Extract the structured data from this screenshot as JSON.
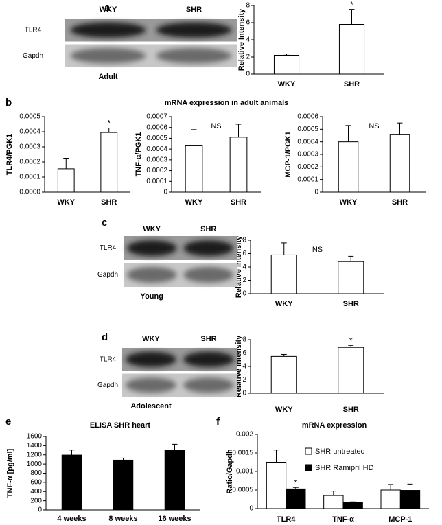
{
  "chart_data": [
    {
      "type": "bar",
      "panel": "a",
      "blot": {
        "lanes": [
          "WKY",
          "SHR"
        ],
        "rows": [
          "TLR4",
          "Gapdh"
        ],
        "caption": "Adult"
      },
      "ylabel": "Relative Intensity",
      "categories": [
        "WKY",
        "SHR"
      ],
      "series": [
        {
          "color": "#ffffff",
          "values": [
            2.2,
            5.8
          ],
          "errors": [
            0.15,
            1.75
          ],
          "annotations": [
            null,
            "*"
          ]
        }
      ],
      "ylim": [
        0,
        8
      ],
      "yticks": [
        0,
        2,
        4,
        6,
        8
      ]
    },
    {
      "type": "bar",
      "panel": "b",
      "ylabel": "TLR4/PGK1",
      "categories": [
        "WKY",
        "SHR"
      ],
      "series": [
        {
          "color": "#ffffff",
          "values": [
            0.000155,
            0.000395
          ],
          "errors": [
            7e-05,
            3e-05
          ],
          "annotations": [
            null,
            "*"
          ]
        }
      ],
      "ylim": [
        0,
        0.0005
      ],
      "yticks": [
        {
          "value": 0,
          "label": "0.0000"
        },
        0.0001,
        0.0002,
        0.0003,
        0.0004,
        0.0005
      ]
    },
    {
      "type": "bar",
      "title": "mRNA expression in adult animals",
      "ylabel": "TNF-α/PGK1",
      "annotation": "NS",
      "categories": [
        "WKY",
        "SHR"
      ],
      "series": [
        {
          "color": "#ffffff",
          "values": [
            0.00043,
            0.00051
          ],
          "errors": [
            0.00015,
            0.00012
          ]
        }
      ],
      "ylim": [
        0,
        0.0007
      ],
      "yticks": [
        0,
        0.0001,
        0.0002,
        0.0003,
        0.0004,
        0.0005,
        0.0006,
        0.0007
      ]
    },
    {
      "type": "bar",
      "ylabel": "MCP-1/PGK1",
      "annotation": "NS",
      "categories": [
        "WKY",
        "SHR"
      ],
      "series": [
        {
          "color": "#ffffff",
          "values": [
            0.0004,
            0.00046
          ],
          "errors": [
            0.00013,
            9e-05
          ]
        }
      ],
      "ylim": [
        0,
        0.0006
      ],
      "yticks": [
        0,
        0.0001,
        0.0002,
        0.0003,
        0.0004,
        0.0005,
        0.0006
      ]
    },
    {
      "type": "bar",
      "panel": "c",
      "blot": {
        "lanes": [
          "WKY",
          "SHR"
        ],
        "rows": [
          "TLR4",
          "Gapdh"
        ],
        "caption": "Young"
      },
      "ylabel": "Relative intensity",
      "annotation": "NS",
      "categories": [
        "WKY",
        "SHR"
      ],
      "series": [
        {
          "color": "#ffffff",
          "values": [
            5.8,
            4.8
          ],
          "errors": [
            1.8,
            0.8
          ]
        }
      ],
      "ylim": [
        0,
        8
      ],
      "yticks": [
        0,
        2,
        4,
        6,
        8
      ]
    },
    {
      "type": "bar",
      "panel": "d",
      "blot": {
        "lanes": [
          "WKY",
          "SHR"
        ],
        "rows": [
          "TLR4",
          "Gapdh"
        ],
        "caption": "Adolescent"
      },
      "ylabel": "Relative intensity",
      "categories": [
        "WKY",
        "SHR"
      ],
      "series": [
        {
          "color": "#ffffff",
          "values": [
            5.5,
            6.85
          ],
          "errors": [
            0.3,
            0.3
          ],
          "annotations": [
            null,
            "*"
          ]
        }
      ],
      "ylim": [
        0,
        8
      ],
      "yticks": [
        0,
        2,
        4,
        6,
        8
      ]
    },
    {
      "type": "bar",
      "panel": "e",
      "title": "ELISA SHR heart",
      "ylabel": "TNF-α [pg/ml]",
      "categories": [
        "4 weeks",
        "8 weeks",
        "16 weeks"
      ],
      "series": [
        {
          "color": "#000000",
          "values": [
            1195,
            1085,
            1300
          ],
          "errors": [
            110,
            45,
            130
          ]
        }
      ],
      "ylim": [
        0,
        1600
      ],
      "yticks": [
        0,
        200,
        400,
        600,
        800,
        1000,
        1200,
        1400,
        1600
      ]
    },
    {
      "type": "bar",
      "panel": "f",
      "title": "mRNA expression",
      "ylabel": "Ratio/Gapdh",
      "categories": [
        "TLR4",
        "TNF-α",
        "MCP-1"
      ],
      "series": [
        {
          "name": "SHR untreated",
          "color": "#ffffff",
          "values": [
            0.00125,
            0.00035,
            0.0005
          ],
          "errors": [
            0.00033,
            0.00012,
            0.00015
          ]
        },
        {
          "name": "SHR Ramipril HD",
          "color": "#000000",
          "values": [
            0.00053,
            0.00016,
            0.00049
          ],
          "errors": [
            4e-05,
            2e-05,
            0.00017
          ],
          "annotations": [
            "*",
            null,
            null
          ]
        }
      ],
      "ylim": [
        0,
        0.002
      ],
      "yticks": [
        0,
        0.0005,
        0.001,
        0.0015,
        0.002
      ]
    }
  ]
}
